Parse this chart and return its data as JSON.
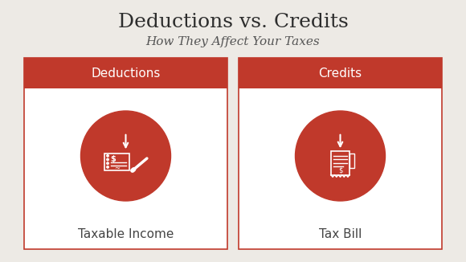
{
  "bg_color": "#edeae5",
  "title": "Deductions vs. Credits",
  "subtitle": "How They Affect Your Taxes",
  "title_color": "#2d2d2d",
  "subtitle_color": "#555555",
  "title_fontsize": 18,
  "subtitle_fontsize": 11,
  "red_color": "#c0392b",
  "white_color": "#ffffff",
  "label_color": "#444444",
  "left_header": "Deductions",
  "right_header": "Credits",
  "left_label": "Taxable Income",
  "right_label": "Tax Bill",
  "header_fontsize": 11,
  "label_fontsize": 11
}
